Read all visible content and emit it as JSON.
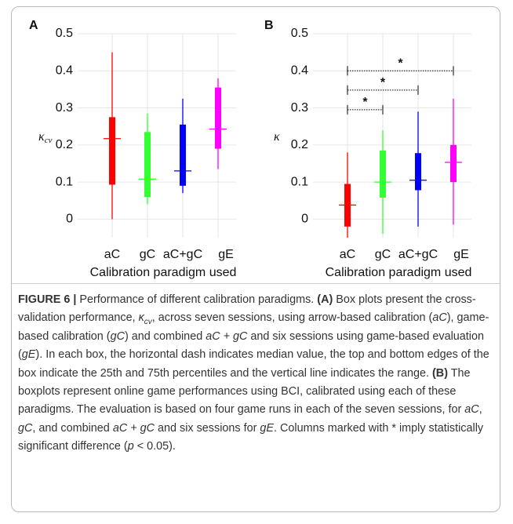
{
  "charts": [
    {
      "chart_data": {
        "type": "box",
        "panel": "A",
        "y_label": "κ",
        "y_label_sub": "cv",
        "x_label": "Calibration paradigm used",
        "categories": [
          "aC",
          "gC",
          "aC+gC",
          "gE"
        ],
        "colors": [
          "#ff0000",
          "#33ff33",
          "#0000ff",
          "#ff00ff"
        ],
        "min": [
          0.0,
          0.04,
          0.07,
          0.135
        ],
        "q1": [
          0.093,
          0.06,
          0.09,
          0.19
        ],
        "median": [
          0.217,
          0.108,
          0.13,
          0.243
        ],
        "q3": [
          0.275,
          0.235,
          0.255,
          0.355
        ],
        "max": [
          0.45,
          0.285,
          0.325,
          0.38
        ],
        "ylim": [
          -0.05,
          0.5
        ],
        "yticks": [
          0,
          0.1,
          0.2,
          0.3,
          0.4,
          0.5
        ],
        "grid": true
      }
    },
    {
      "chart_data": {
        "type": "box",
        "panel": "B",
        "y_label": "κ",
        "x_label": "Calibration paradigm used",
        "categories": [
          "aC",
          "gC",
          "aC+gC",
          "gE"
        ],
        "colors": [
          "#ff0000",
          "#33ff33",
          "#0000ff",
          "#ff00ff"
        ],
        "min": [
          -0.05,
          -0.04,
          -0.02,
          -0.015
        ],
        "q1": [
          -0.02,
          0.058,
          0.078,
          0.1
        ],
        "median": [
          0.038,
          0.1,
          0.105,
          0.153
        ],
        "q3": [
          0.095,
          0.185,
          0.178,
          0.2
        ],
        "max": [
          0.18,
          0.24,
          0.29,
          0.325
        ],
        "significance": [
          {
            "pair": [
              "aC",
              "gC"
            ],
            "value": 0.295,
            "label": "*"
          },
          {
            "pair": [
              "aC",
              "aC+gC"
            ],
            "value": 0.348,
            "label": "*"
          },
          {
            "pair": [
              "aC",
              "gE"
            ],
            "value": 0.4,
            "label": "*"
          }
        ],
        "ylim": [
          -0.05,
          0.5
        ],
        "yticks": [
          0,
          0.1,
          0.2,
          0.3,
          0.4,
          0.5
        ],
        "grid": true
      }
    }
  ],
  "caption": [
    {
      "text": "FIGURE 6 |",
      "style": "b"
    },
    {
      "text": " Performance of different calibration paradigms. "
    },
    {
      "text": "(A)",
      "style": "b"
    },
    {
      "text": " Box plots present the cross-validation performance, "
    },
    {
      "text": "κ",
      "style": "i"
    },
    {
      "text": "cv",
      "style": "sub"
    },
    {
      "text": ", across seven sessions, using arrow-based calibration ("
    },
    {
      "text": "aC",
      "style": "i"
    },
    {
      "text": "), game-based calibration ("
    },
    {
      "text": "gC",
      "style": "i"
    },
    {
      "text": ") and combined "
    },
    {
      "text": "aC + gC",
      "style": "i"
    },
    {
      "text": " and six sessions using game-based evaluation ("
    },
    {
      "text": "gE",
      "style": "i"
    },
    {
      "text": "). In each box, the horizontal dash indicates median value, the top and bottom edges of the box indicate the 25th and 75th percentiles and the vertical line indicates the range. "
    },
    {
      "text": "(B)",
      "style": "b"
    },
    {
      "text": " The boxplots represent online game performances using BCI, calibrated using each of these paradigms. The evaluation is based on four game runs in each of the seven sessions, for "
    },
    {
      "text": "aC",
      "style": "i"
    },
    {
      "text": ", "
    },
    {
      "text": "gC",
      "style": "i"
    },
    {
      "text": ", and combined "
    },
    {
      "text": "aC + gC",
      "style": "i"
    },
    {
      "text": " and six sessions for "
    },
    {
      "text": "gE",
      "style": "i"
    },
    {
      "text": ". Columns marked with * imply statistically significant difference ("
    },
    {
      "text": "p",
      "style": "i"
    },
    {
      "text": " < 0.05)."
    }
  ]
}
